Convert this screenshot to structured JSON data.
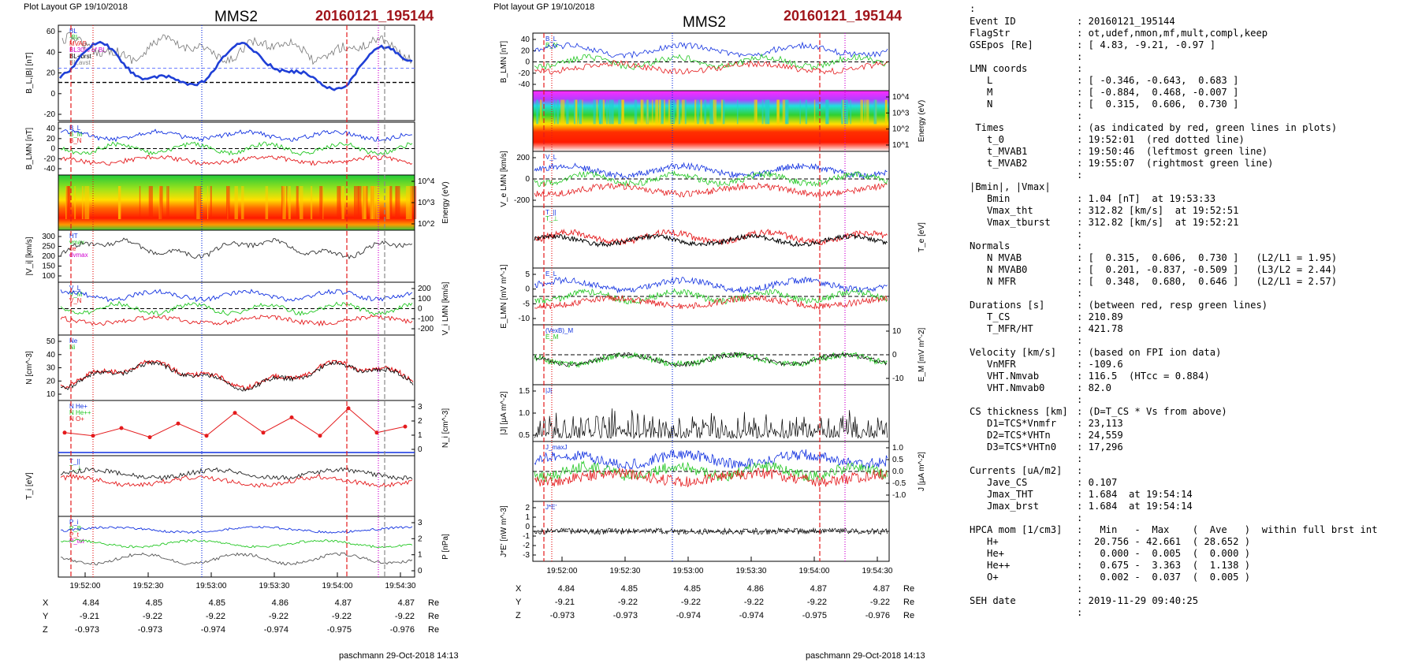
{
  "left_figure": {
    "header_left": "Plot Layout GP 19/10/2018",
    "spacecraft": "MMS2",
    "event_id": "20160121_195144",
    "footer": "paschmann 29-Oct-2018 14:13",
    "time_ticks": [
      "19:52:00",
      "19:52:30",
      "19:53:00",
      "19:53:30",
      "19:54:00",
      "19:54:30"
    ],
    "ephemeris": {
      "rows": [
        {
          "label": "X",
          "values": [
            "4.84",
            "4.85",
            "4.85",
            "4.86",
            "4.87",
            "4.87"
          ],
          "unit": "Re"
        },
        {
          "label": "Y",
          "values": [
            "-9.21",
            "-9.22",
            "-9.22",
            "-9.22",
            "-9.22",
            "-9.22"
          ],
          "unit": "Re"
        },
        {
          "label": "Z",
          "values": [
            "-0.973",
            "-0.973",
            "-0.974",
            "-0.974",
            "-0.975",
            "-0.976"
          ],
          "unit": "Re"
        }
      ]
    },
    "panels": [
      {
        "id": "bl",
        "ylabel": "B_L,|B| [nT]",
        "ylabel_side": "left",
        "ticks": [
          "60",
          "40",
          "20",
          "0",
          "-20"
        ],
        "legend": [
          "BL",
          "-BL",
          "MVAB",
          "BL30% of BL",
          "BL+brst",
          "BL,avst"
        ]
      },
      {
        "id": "blmn",
        "ylabel": "B_LMN [nT]",
        "ylabel_side": "left",
        "ticks": [
          "40",
          "20",
          "0",
          "-20",
          "-40"
        ],
        "legend": [
          "B_L",
          "B_M",
          "B_N"
        ]
      },
      {
        "id": "ion_spec",
        "ylabel": "Energy (eV)",
        "ylabel_side": "right",
        "ticks": [
          "10^4",
          "10^3",
          "10^2"
        ]
      },
      {
        "id": "vi",
        "ylabel": "|V_i| [km/s]",
        "ylabel_side": "left",
        "ticks": [
          "300",
          "250",
          "200",
          "150",
          "100"
        ],
        "legend": [
          "HT",
          "vmax",
          "ce",
          "dvmax"
        ]
      },
      {
        "id": "vilmn",
        "ylabel": "V_i LMN [km/s]",
        "ylabel_side": "right",
        "ticks": [
          "200",
          "100",
          "0",
          "-100",
          "-200"
        ],
        "legend": [
          "V_L",
          "V_M",
          "V_N"
        ]
      },
      {
        "id": "n",
        "ylabel": "N [cm^-3]",
        "ylabel_side": "left",
        "ticks": [
          "50",
          "40",
          "30",
          "20",
          "10"
        ],
        "legend": [
          "Ne",
          "Ni"
        ]
      },
      {
        "id": "hpca",
        "ylabel": "N_i [cm^-3]",
        "ylabel_side": "right",
        "ticks": [
          "3",
          "2",
          "1",
          "0"
        ],
        "legend": [
          "N He+",
          "N He++",
          "N O+"
        ]
      },
      {
        "id": "ti",
        "ylabel": "T_i [eV]",
        "ylabel_side": "left",
        "ticks": [],
        "legend": [
          "T_||",
          "T_⊥"
        ]
      },
      {
        "id": "p",
        "ylabel": "P [nPa]",
        "ylabel_side": "right",
        "ticks": [
          "3",
          "2",
          "1",
          "0"
        ],
        "legend": [
          "P_i",
          "P_B",
          "P_t",
          "P_tot"
        ]
      }
    ]
  },
  "mid_figure": {
    "header_left": "Plot layout GP 19/10/2018",
    "spacecraft": "MMS2",
    "event_id": "20160121_195144",
    "footer": "paschmann 29-Oct-2018 14:13",
    "time_ticks": [
      "19:52:00",
      "19:52:30",
      "19:53:00",
      "19:53:30",
      "19:54:00",
      "19:54:30"
    ],
    "ephemeris": {
      "rows": [
        {
          "label": "X",
          "values": [
            "4.84",
            "4.85",
            "4.85",
            "4.86",
            "4.87",
            "4.87"
          ],
          "unit": "Re"
        },
        {
          "label": "Y",
          "values": [
            "-9.21",
            "-9.22",
            "-9.22",
            "-9.22",
            "-9.22",
            "-9.22"
          ],
          "unit": "Re"
        },
        {
          "label": "Z",
          "values": [
            "-0.973",
            "-0.973",
            "-0.974",
            "-0.974",
            "-0.975",
            "-0.976"
          ],
          "unit": "Re"
        }
      ]
    },
    "panels": [
      {
        "id": "blmn",
        "ylabel": "B_LMN [nT]",
        "ylabel_side": "left",
        "ticks": [
          "40",
          "20",
          "0",
          "-20",
          "-40"
        ],
        "legend": [
          "B_L",
          "B_N"
        ]
      },
      {
        "id": "e_spec",
        "ylabel": "Energy (eV)",
        "ylabel_side": "right",
        "ticks": [
          "10^4",
          "10^3",
          "10^2",
          "10^1"
        ]
      },
      {
        "id": "velmn",
        "ylabel": "V_e LMN [km/s]",
        "ylabel_side": "left",
        "ticks": [
          "200",
          "0",
          "-200"
        ],
        "legend": [
          "V_L"
        ]
      },
      {
        "id": "te",
        "ylabel": "T_e [eV]",
        "ylabel_side": "right",
        "ticks": [],
        "legend": [
          "T_||",
          "T_⊥"
        ]
      },
      {
        "id": "elmn",
        "ylabel": "E_LMN [mV m^-1]",
        "ylabel_side": "left",
        "ticks": [
          "5",
          "0",
          "-5",
          "-10"
        ],
        "legend": [
          "E_L"
        ]
      },
      {
        "id": "em",
        "ylabel": "E_M [mV m^-2]",
        "ylabel_side": "right",
        "ticks": [
          "10",
          "0",
          "-10"
        ],
        "legend": [
          "(VexB)_M",
          "E_M"
        ]
      },
      {
        "id": "j",
        "ylabel": "|J| [μA m^-2]",
        "ylabel_side": "left",
        "ticks": [
          "1.5",
          "1.0",
          "0.5"
        ],
        "legend": [
          "|J|"
        ]
      },
      {
        "id": "jlmn",
        "ylabel": "J [μA m^-2]",
        "ylabel_side": "right",
        "ticks": [
          "1.0",
          "0.5",
          "0.0",
          "-0.5",
          "-1.0"
        ],
        "legend": [
          "J_maxJ"
        ]
      },
      {
        "id": "je",
        "ylabel": "J*E' [nW m^-3]",
        "ylabel_side": "left",
        "ticks": [
          "2",
          "1",
          "0",
          "-1",
          "-2",
          "-3"
        ],
        "legend": [
          "J*E'"
        ]
      }
    ]
  },
  "info_panel": {
    "rows": [
      {
        "k": "Event ID",
        "v": ": 20160121_195144"
      },
      {
        "k": "FlagStr",
        "v": ": ot,udef,nmon,mf,mult,compl,keep"
      },
      {
        "k": "GSEpos [Re]",
        "v": ": [ 4.83, -9.21, -0.97 ]"
      },
      {
        "k": "",
        "v": ":"
      },
      {
        "k": "LMN coords",
        "v": ":"
      },
      {
        "k": "   L",
        "v": ": [ -0.346, -0.643,  0.683 ]"
      },
      {
        "k": "   M",
        "v": ": [ -0.884,  0.468, -0.007 ]"
      },
      {
        "k": "   N",
        "v": ": [  0.315,  0.606,  0.730 ]"
      },
      {
        "k": "",
        "v": ":"
      },
      {
        "k": " Times",
        "v": ": (as indicated by red, green lines in plots)"
      },
      {
        "k": "   t_0",
        "v": ": 19:52:01  (red dotted line)"
      },
      {
        "k": "   t_MVAB1",
        "v": ": 19:50:46  (leftmost green line)"
      },
      {
        "k": "   t_MVAB2",
        "v": ": 19:55:07  (rightmost green line)"
      },
      {
        "k": "",
        "v": ":"
      },
      {
        "k": "|Bmin|, |Vmax|",
        "v": ""
      },
      {
        "k": "   Bmin",
        "v": ": 1.04 [nT]  at 19:53:33"
      },
      {
        "k": "   Vmax_tht",
        "v": ": 312.82 [km/s]  at 19:52:51"
      },
      {
        "k": "   Vmax_tburst",
        "v": ": 312.82 [km/s]  at 19:52:21"
      },
      {
        "k": "",
        "v": ":"
      },
      {
        "k": "Normals",
        "v": ":"
      },
      {
        "k": "   N MVAB",
        "v": ": [  0.315,  0.606,  0.730 ]   (L2/L1 = 1.95)"
      },
      {
        "k": "   N MVAB0",
        "v": ": [  0.201, -0.837, -0.509 ]   (L3/L2 = 2.44)"
      },
      {
        "k": "   N MFR",
        "v": ": [  0.348,  0.680,  0.646 ]   (L2/L1 = 2.57)"
      },
      {
        "k": "",
        "v": ":"
      },
      {
        "k": "Durations [s]",
        "v": ": (between red, resp green lines)"
      },
      {
        "k": "   T_CS",
        "v": ": 210.89"
      },
      {
        "k": "   T_MFR/HT",
        "v": ": 421.78"
      },
      {
        "k": "",
        "v": ":"
      },
      {
        "k": "Velocity [km/s]",
        "v": ": (based on FPI ion data)"
      },
      {
        "k": "   VnMFR",
        "v": ": -109.6"
      },
      {
        "k": "   VHT.Nmvab",
        "v": ": 116.5  (HTcc = 0.884)"
      },
      {
        "k": "   VHT.Nmvab0",
        "v": ": 82.0"
      },
      {
        "k": "",
        "v": ":"
      },
      {
        "k": "CS thickness [km]",
        "v": ": (D=T_CS * Vs from above)"
      },
      {
        "k": "   D1=TCS*Vnmfr",
        "v": ": 23,113"
      },
      {
        "k": "   D2=TCS*VHTn",
        "v": ": 24,559"
      },
      {
        "k": "   D3=TCS*VHTn0",
        "v": ": 17,296"
      },
      {
        "k": "",
        "v": ":"
      },
      {
        "k": "Currents [uA/m2]",
        "v": ":"
      },
      {
        "k": "   Jave_CS",
        "v": ": 0.107"
      },
      {
        "k": "   Jmax_THT",
        "v": ": 1.684  at 19:54:14"
      },
      {
        "k": "   Jmax_brst",
        "v": ": 1.684  at 19:54:14"
      },
      {
        "k": "",
        "v": ":"
      },
      {
        "k": "HPCA mom [1/cm3]",
        "v": ":   Min   -  Max    (  Ave   )  within full brst int"
      },
      {
        "k": "   H+",
        "v": ":  20.756 - 42.661  ( 28.652 )"
      },
      {
        "k": "   He+",
        "v": ":   0.000 -  0.005  (  0.000 )"
      },
      {
        "k": "   He++",
        "v": ":   0.675 -  3.363  (  1.138 )"
      },
      {
        "k": "   O+",
        "v": ":   0.002 -  0.037  (  0.005 )"
      },
      {
        "k": "",
        "v": ":"
      },
      {
        "k": "SEH date",
        "v": ": 2019-11-29 09:40:25"
      },
      {
        "k": "",
        "v": ":"
      }
    ]
  },
  "chart_data": [
    {
      "type": "line",
      "title": "B_L,|B| [nT]",
      "x_range": [
        "19:51:50",
        "19:54:35"
      ],
      "ylim": [
        -30,
        60
      ],
      "series": [
        {
          "name": "B_L",
          "x": [
            "19:51:50",
            "19:52:00",
            "19:52:15",
            "19:52:30",
            "19:52:45",
            "19:53:00",
            "19:53:15",
            "19:53:30",
            "19:53:45",
            "19:54:00",
            "19:54:15",
            "19:54:30"
          ],
          "values": [
            -20,
            -10,
            25,
            30,
            10,
            -10,
            25,
            -5,
            -15,
            50,
            40,
            25
          ]
        }
      ]
    },
    {
      "type": "line",
      "title": "B_LMN [nT]",
      "ylim": [
        -50,
        50
      ]
    },
    {
      "type": "heatmap",
      "title": "Ion energy spectrogram"
    },
    {
      "type": "line",
      "title": "|V_i| [km/s]",
      "ylim": [
        100,
        300
      ]
    },
    {
      "type": "line",
      "title": "V_i LMN [km/s]",
      "ylim": [
        -200,
        200
      ]
    },
    {
      "type": "line",
      "title": "N [cm^-3]",
      "ylim": [
        10,
        50
      ]
    },
    {
      "type": "line",
      "title": "N_i [cm^-3]",
      "ylim": [
        0,
        3
      ],
      "series": [
        {
          "name": "N He++",
          "x": [
            "19:51:50",
            "19:52:05",
            "19:52:15",
            "19:52:30",
            "19:52:40",
            "19:52:55",
            "19:53:05",
            "19:53:15",
            "19:53:30",
            "19:53:45",
            "19:53:55",
            "19:54:10",
            "19:54:20"
          ],
          "values": [
            1.2,
            1.0,
            1.5,
            0.9,
            1.8,
            1.0,
            2.5,
            1.2,
            2.2,
            1.0,
            2.8,
            1.2,
            1.6
          ]
        }
      ]
    },
    {
      "type": "line",
      "title": "T_i [eV]"
    },
    {
      "type": "line",
      "title": "P [nPa]",
      "ylim": [
        0,
        3
      ]
    },
    {
      "type": "line",
      "title": "B_LMN [nT]",
      "ylim": [
        -50,
        50
      ]
    },
    {
      "type": "heatmap",
      "title": "Electron energy spectrogram"
    },
    {
      "type": "line",
      "title": "V_e LMN [km/s]",
      "ylim": [
        -300,
        300
      ]
    },
    {
      "type": "line",
      "title": "T_e [eV]"
    },
    {
      "type": "line",
      "title": "E_LMN [mV m^-1]",
      "ylim": [
        -12,
        7
      ]
    },
    {
      "type": "line",
      "title": "E_M [mV m^-2]",
      "ylim": [
        -15,
        15
      ]
    },
    {
      "type": "line",
      "title": "|J| [μA m^-2]",
      "ylim": [
        0,
        1.5
      ]
    },
    {
      "type": "line",
      "title": "J [μA m^-2]",
      "ylim": [
        -1.2,
        1.2
      ]
    },
    {
      "type": "line",
      "title": "J*E' [nW m^-3]",
      "ylim": [
        -3,
        3
      ]
    }
  ],
  "colors": {
    "event_red": "#a0151b",
    "bl_blue": "#1f3fd6",
    "red": "#e41a1c",
    "green": "#22c722",
    "blue": "#1030e0",
    "magenta": "#d000d0"
  }
}
